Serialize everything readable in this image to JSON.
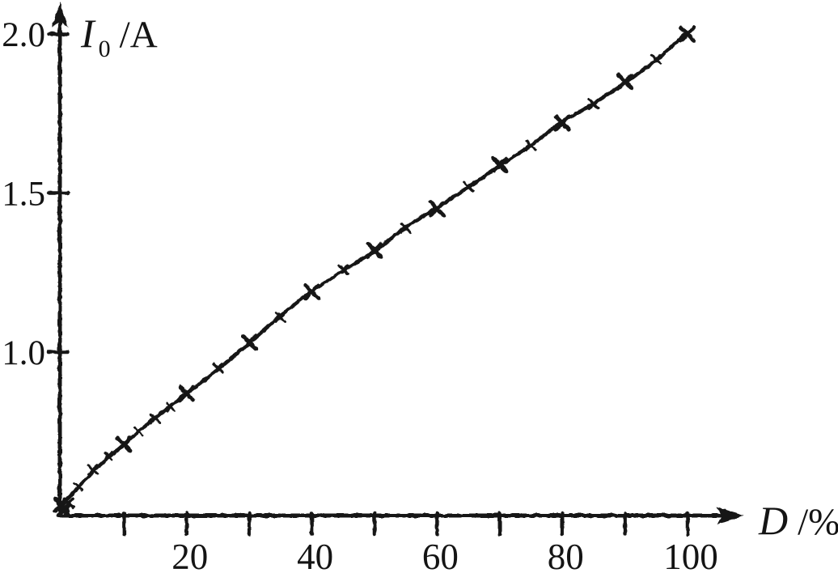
{
  "figure": {
    "description": "Scanned black-and-white physics plot of current versus duty cycle",
    "background_color": "#ffffff",
    "ink_color": "#161616"
  },
  "chart_data": {
    "type": "line",
    "title": "",
    "xlabel": "D/%",
    "ylabel": "I0/A",
    "xlabel_parts": {
      "symbol": "D",
      "unit": "/%"
    },
    "ylabel_parts": {
      "symbol": "I",
      "subscript": "0",
      "unit": "/A"
    },
    "marker": "x",
    "grid": false,
    "legend": "none",
    "xlim": [
      0,
      108
    ],
    "ylim_displayed": [
      0.49,
      2.1
    ],
    "x_tick_marks": [
      10,
      20,
      30,
      40,
      50,
      60,
      70,
      80,
      90,
      100
    ],
    "x_labeled_ticks": [
      {
        "d": 20,
        "label": "20"
      },
      {
        "d": 40,
        "label": "40"
      },
      {
        "d": 60,
        "label": "60"
      },
      {
        "d": 80,
        "label": "80"
      },
      {
        "d": 100,
        "label": "100"
      }
    ],
    "y_ticks": [
      {
        "value": 1.0,
        "label": "1.0"
      },
      {
        "value": 1.5,
        "label": "1.5"
      },
      {
        "value": 2.0,
        "label": "2.0"
      }
    ],
    "series": [
      {
        "name": "I0 vs D",
        "x": [
          0,
          5,
          10,
          15,
          20,
          25,
          30,
          35,
          40,
          45,
          50,
          55,
          60,
          65,
          70,
          75,
          80,
          85,
          90,
          95,
          100
        ],
        "y": [
          0.52,
          0.63,
          0.71,
          0.79,
          0.87,
          0.95,
          1.03,
          1.11,
          1.19,
          1.26,
          1.32,
          1.39,
          1.45,
          1.52,
          1.59,
          1.65,
          1.72,
          1.78,
          1.85,
          1.92,
          2.0
        ]
      }
    ]
  }
}
